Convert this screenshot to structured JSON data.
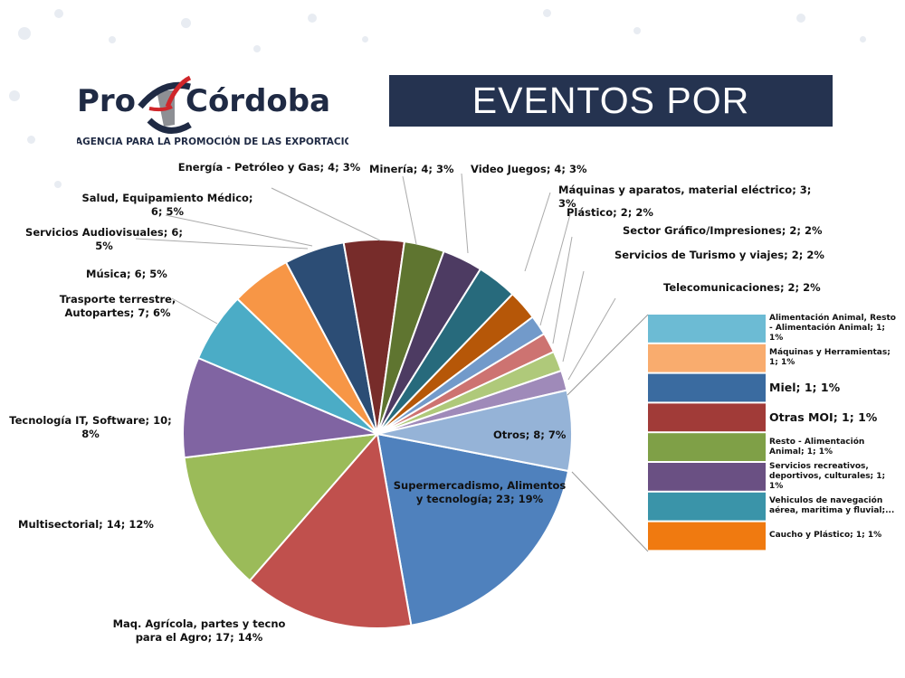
{
  "header": {
    "title": "EVENTOS POR SECTOR"
  },
  "logo": {
    "text_left": "Pro",
    "text_right": "Córdoba",
    "tagline": "AGENCIA PARA LA PROMOCIÓN DE LAS EXPORTACIONES"
  },
  "chart_data": {
    "type": "pie",
    "subtype": "bar-of-pie",
    "total": 120,
    "slices": [
      {
        "label": "Supermercadismo, Alimentos y tecnología; 23; 19%",
        "value": 23,
        "color": "#4F81BD"
      },
      {
        "label": "Maq. Agrícola, partes y tecno para el Agro; 17; 14%",
        "value": 17,
        "color": "#C0504D"
      },
      {
        "label": "Multisectorial; 14; 12%",
        "value": 14,
        "color": "#9BBB59"
      },
      {
        "label": "Tecnología IT, Software; 10; 8%",
        "value": 10,
        "color": "#8064A2"
      },
      {
        "label": "Trasporte terrestre, Autopartes; 7; 6%",
        "value": 7,
        "color": "#4BACC6"
      },
      {
        "label": "Música; 6; 5%",
        "value": 6,
        "color": "#F79646"
      },
      {
        "label": "Servicios Audiovisuales; 6; 5%",
        "value": 6,
        "color": "#2C4D75"
      },
      {
        "label": "Salud, Equipamiento Médico; 6; 5%",
        "value": 6,
        "color": "#772C2A"
      },
      {
        "label": "Energía - Petróleo y Gas; 4; 3%",
        "value": 4,
        "color": "#5F7530"
      },
      {
        "label": "Minería; 4; 3%",
        "value": 4,
        "color": "#4D3B62"
      },
      {
        "label": "Video Juegos; 4; 3%",
        "value": 4,
        "color": "#276A7C"
      },
      {
        "label": "Máquinas y aparatos, material eléctrico; 3; 3%",
        "value": 3,
        "color": "#B65708"
      },
      {
        "label": "Plástico; 2; 2%",
        "value": 2,
        "color": "#729ACA"
      },
      {
        "label": "Sector Gráfico/Impresiones; 2; 2%",
        "value": 2,
        "color": "#CD7371"
      },
      {
        "label": "Servicios de Turismo y viajes; 2; 2%",
        "value": 2,
        "color": "#AFC97A"
      },
      {
        "label": "Telecomunicaciones; 2; 2%",
        "value": 2,
        "color": "#9F8AB9"
      },
      {
        "label": "Otros; 8; 7%",
        "value": 8,
        "color": "#95B3D7"
      }
    ],
    "bar_breakdown": [
      {
        "label": "Alimentación Animal, Resto - Alimentación Animal; 1; 1%",
        "value": 1,
        "color": "#6CBBD4"
      },
      {
        "label": "Máquinas y Herramientas; 1; 1%",
        "value": 1,
        "color": "#F9AC6E"
      },
      {
        "label": "Miel; 1; 1%",
        "value": 1,
        "color": "#3A6BA0"
      },
      {
        "label": "Otras MOI; 1; 1%",
        "value": 1,
        "color": "#A13B38"
      },
      {
        "label": "Resto - Alimentación Animal; 1; 1%",
        "value": 1,
        "color": "#7FA047"
      },
      {
        "label": "Servicios recreativos, deportivos, culturales; 1; 1%",
        "value": 1,
        "color": "#6A5083"
      },
      {
        "label": "Vehiculos de navegación aérea, maritima y fluvial;...",
        "value": 1,
        "color": "#3A94A9"
      },
      {
        "label": "Caucho y Plástico; 1; 1%",
        "value": 1,
        "color": "#F07A10"
      }
    ]
  }
}
